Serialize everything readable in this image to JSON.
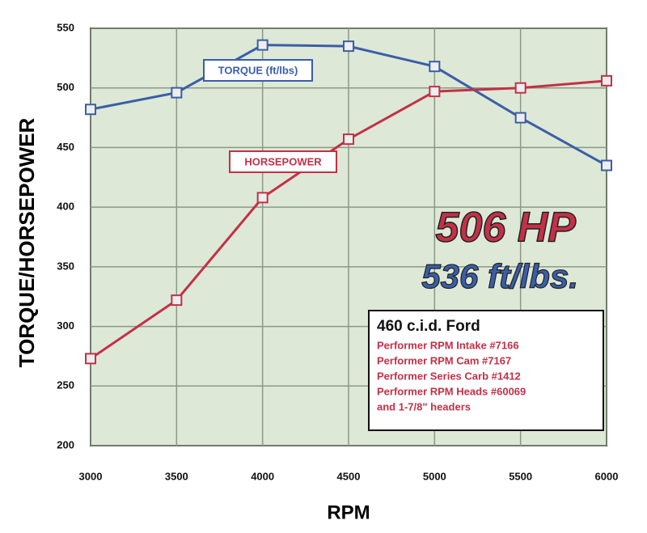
{
  "chart_data": {
    "type": "line",
    "ylabel": "TORQUE/HORSEPOWER",
    "xlabel": "RPM",
    "x": [
      3000,
      3500,
      4000,
      4500,
      5000,
      5500,
      6000
    ],
    "xlim": [
      3000,
      6000
    ],
    "xticks": [
      3000,
      3500,
      4000,
      4500,
      5000,
      5500,
      6000
    ],
    "ylim": [
      200,
      550
    ],
    "yticks": [
      200,
      250,
      300,
      350,
      400,
      450,
      500,
      550
    ],
    "grid": true,
    "series": [
      {
        "name": "TORQUE (ft/lbs)",
        "color": "#3a5ea8",
        "values": [
          482,
          496,
          536,
          535,
          518,
          475,
          435
        ]
      },
      {
        "name": "HORSEPOWER",
        "color": "#c33048",
        "values": [
          273,
          322,
          408,
          457,
          497,
          500,
          506
        ]
      }
    ],
    "annotations": {
      "peak_hp": "506 HP",
      "peak_torque": "536 ft/lbs.",
      "spec_title": "460 c.i.d. Ford",
      "spec_lines": [
        "Performer RPM Intake #7166",
        "Performer RPM Cam #7167",
        "Performer Series Carb #1412",
        "Performer RPM Heads #60069",
        "and 1-7/8\" headers"
      ]
    }
  }
}
